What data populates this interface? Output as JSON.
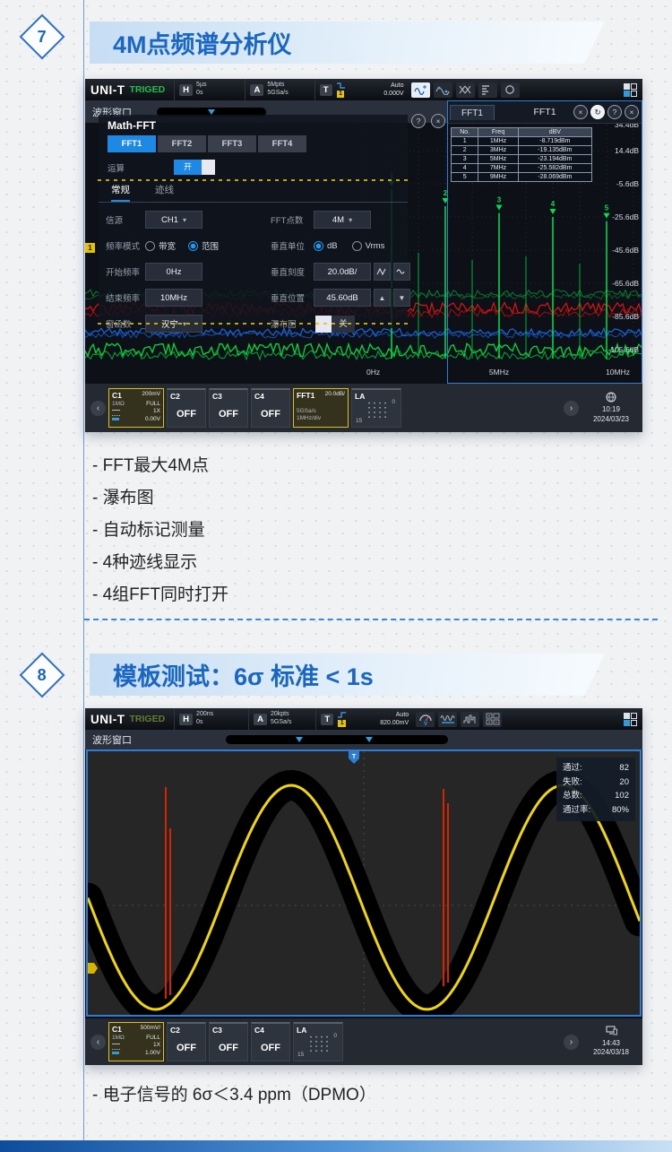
{
  "page": {
    "sections": [
      {
        "badge": "7",
        "title": "4M点频谱分析仪",
        "bullets": [
          "- FFT最大4M点",
          "- 瀑布图",
          "- 自动标记测量",
          "- 4种迹线显示",
          "- 4组FFT同时打开"
        ]
      },
      {
        "badge": "8",
        "title": "模板测试：6σ 标准 < 1s",
        "caption": "- 电子信号的 6σ＜3.4 ppm（DPMO）"
      }
    ],
    "accent_blue": "#1a66c4"
  },
  "scope1": {
    "topbar": {
      "brand": "UNI-T",
      "trig": "TRIGED",
      "h_key": "H",
      "h1": "5µs",
      "h2": "0s",
      "a_key": "A",
      "a1": "5Mpts",
      "a2": "5GSa/s",
      "t_key": "T",
      "t_num": "1",
      "auto": "Auto",
      "auto_v": "0.000V"
    },
    "window_title": "波形窗口",
    "fft_window": {
      "tab": "FFT1",
      "title": "FFT1"
    },
    "dialog": {
      "title": "Math-FFT",
      "tabs": [
        "FFT1",
        "FFT2",
        "FFT3",
        "FFT4"
      ],
      "op_label": "运算",
      "op_on": "开",
      "subtab_normal": "常规",
      "subtab_trace": "迹线",
      "src_label": "信源",
      "src_value": "CH1",
      "pts_label": "FFT点数",
      "pts_value": "4M",
      "fmode_label": "频率模式",
      "fmode_bw": "带宽",
      "fmode_range": "范围",
      "vunit_label": "垂直单位",
      "vunit_db": "dB",
      "vunit_vrms": "Vrms",
      "fstart_label": "开始频率",
      "fstart_value": "0Hz",
      "vscale_label": "垂直刻度",
      "vscale_value": "20.0dB/",
      "fend_label": "结束频率",
      "fend_value": "10MHz",
      "vpos_label": "垂直位置",
      "vpos_value": "45.60dB",
      "win_label": "窗函数",
      "win_value": "汉宁",
      "wf_label": "瀑布图",
      "wf_off": "关"
    },
    "table": {
      "headers": [
        "No.",
        "Freq",
        "dBV"
      ],
      "rows": [
        [
          "1",
          "1MHz",
          "-8.719dBm"
        ],
        [
          "2",
          "3MHz",
          "-19.135dBm"
        ],
        [
          "3",
          "5MHz",
          "-23.194dBm"
        ],
        [
          "4",
          "7MHz",
          "-25.582dBm"
        ],
        [
          "5",
          "9MHz",
          "-28.069dBm"
        ]
      ]
    },
    "spectrum": {
      "db_labels": [
        "34.4dB",
        "14.4dB",
        "-5.6dB",
        "-25.6dB",
        "-45.6dB",
        "-65.6dB",
        "-85.6dB",
        "-105.6dB"
      ],
      "freq_labels": [
        "0Hz",
        "5MHz",
        "10MHz"
      ],
      "peaks": [
        {
          "n": "1",
          "mhz": 1,
          "db": -8.719
        },
        {
          "n": "2",
          "mhz": 3,
          "db": -19.135
        },
        {
          "n": "3",
          "mhz": 5,
          "db": -23.194
        },
        {
          "n": "4",
          "mhz": 7,
          "db": -25.582
        },
        {
          "n": "5",
          "mhz": 9,
          "db": -28.069
        }
      ],
      "trace_green": "#00e14e",
      "trace_red": "#e01212",
      "trace_blue": "#1b66e0"
    },
    "bottombar": {
      "c1": {
        "name": "C1",
        "volt": "200mV",
        "imp": "1MΩ",
        "bw": "FULL",
        "att": "1X",
        "offset": "0.00V"
      },
      "c2": "C2",
      "c3": "C3",
      "c4": "C4",
      "off": "OFF",
      "fft": {
        "name": "FFT1",
        "scale": "20.0dB/",
        "rate": "5GSa/s",
        "div": "1MHz/div"
      },
      "la": "LA",
      "la_lo": "0",
      "la_hi": "15",
      "time": "10:19",
      "date": "2024/03/23"
    }
  },
  "scope2": {
    "topbar": {
      "brand": "UNI-T",
      "trig": "TRIGED",
      "h_key": "H",
      "h1": "200ns",
      "h2": "0s",
      "a_key": "A",
      "a1": "20kpts",
      "a2": "5GSa/s",
      "t_key": "T",
      "t_num": "1",
      "auto": "Auto",
      "auto_v": "820.00mV"
    },
    "window_title": "波形窗口",
    "stats": [
      {
        "label": "通过:",
        "value": "82"
      },
      {
        "label": "失败:",
        "value": "20"
      },
      {
        "label": "总数:",
        "value": "102"
      },
      {
        "label": "通过率:",
        "value": "80%"
      }
    ],
    "wave_colors": {
      "signal": "#f2d800",
      "mask": "#000000",
      "fail": "#d42400"
    },
    "bottombar": {
      "c1": {
        "name": "C1",
        "volt": "500mV/",
        "imp": "1MΩ",
        "bw": "FULL",
        "att": "1X",
        "offset": "1.00V"
      },
      "c2": "C2",
      "c3": "C3",
      "c4": "C4",
      "off": "OFF",
      "la": "LA",
      "la_lo": "0",
      "la_hi": "15",
      "time": "14:43",
      "date": "2024/03/18"
    }
  }
}
